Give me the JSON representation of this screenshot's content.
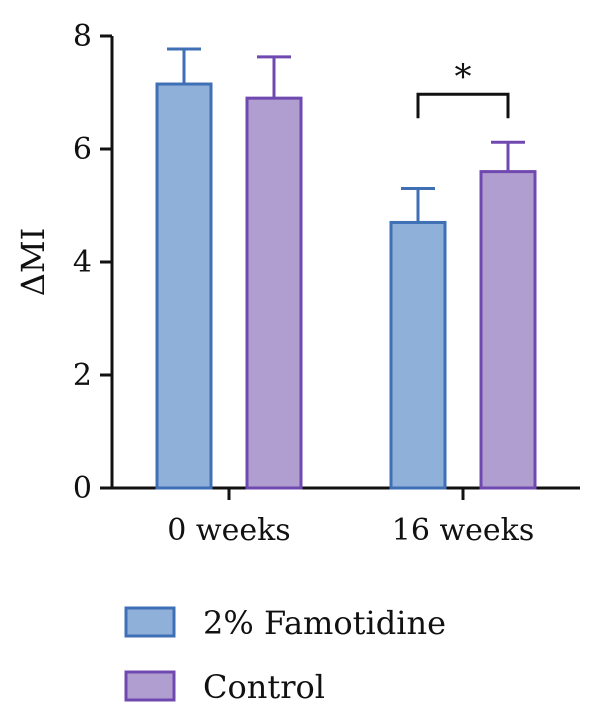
{
  "chart_data": {
    "type": "bar",
    "title": "",
    "xlabel": "",
    "ylabel": "ΔMI",
    "ylim": [
      0,
      8
    ],
    "yticks": [
      "0",
      "2",
      "4",
      "6",
      "8"
    ],
    "categories": [
      "0 weeks",
      "16 weeks"
    ],
    "series": [
      {
        "name": "2% Famotidine",
        "values": [
          7.15,
          4.7
        ],
        "errors": [
          0.62,
          0.6
        ],
        "color": "#8fb0d9",
        "edge": "#3f6fb4"
      },
      {
        "name": "Control",
        "values": [
          6.9,
          5.6
        ],
        "errors": [
          0.73,
          0.52
        ],
        "color": "#b09ed0",
        "edge": "#7049b0"
      }
    ],
    "significance": [
      {
        "category_index": 1,
        "label": "*"
      }
    ],
    "grid": false,
    "legend_position": "bottom"
  }
}
